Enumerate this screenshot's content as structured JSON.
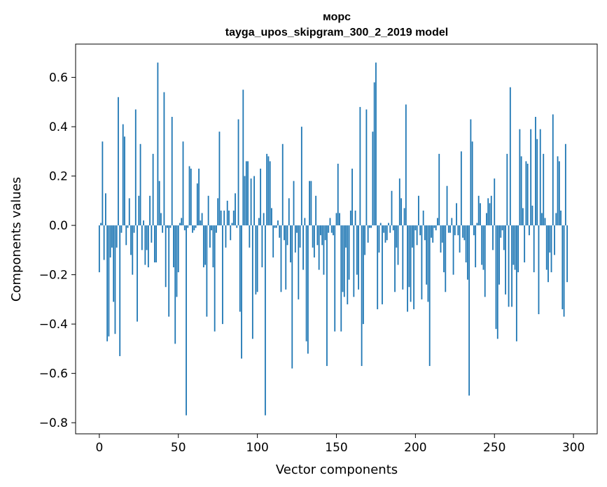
{
  "chart_data": {
    "type": "bar",
    "title": "морс",
    "subtitle": "tayga_upos_skipgram_300_2_2019 model",
    "xlabel": "Vector components",
    "ylabel": "Components values",
    "xlim": [
      -15,
      315
    ],
    "ylim": [
      -0.845,
      0.735
    ],
    "x_ticks": [
      0,
      50,
      100,
      150,
      200,
      250,
      300
    ],
    "y_ticks": [
      -0.8,
      -0.6,
      -0.4,
      -0.2,
      0.0,
      0.2,
      0.4,
      0.6
    ],
    "x_tick_labels": [
      "0",
      "50",
      "100",
      "150",
      "200",
      "250",
      "300"
    ],
    "y_tick_labels": [
      "−0.8",
      "−0.6",
      "−0.4",
      "−0.2",
      "0.0",
      "0.2",
      "0.4",
      "0.6"
    ],
    "bar_color": "#1f77b4",
    "grid": false,
    "values": [
      -0.19,
      0.01,
      0.34,
      -0.14,
      0.13,
      -0.47,
      -0.45,
      -0.13,
      -0.09,
      -0.31,
      -0.44,
      -0.09,
      0.52,
      -0.53,
      -0.03,
      0.41,
      0.36,
      -0.08,
      -0.01,
      0.11,
      -0.12,
      -0.2,
      -0.03,
      0.47,
      -0.39,
      0.12,
      0.33,
      -0.1,
      0.02,
      -0.16,
      -0.1,
      -0.17,
      0.12,
      -0.07,
      0.29,
      -0.15,
      -0.15,
      0.66,
      0.18,
      0.05,
      -0.03,
      0.54,
      -0.25,
      -0.01,
      -0.37,
      -0.01,
      0.44,
      -0.17,
      -0.48,
      -0.29,
      -0.19,
      0.01,
      0.03,
      0.34,
      -0.02,
      -0.77,
      -0.01,
      0.24,
      0.23,
      -0.03,
      -0.02,
      -0.01,
      0.17,
      0.23,
      0.02,
      0.05,
      -0.17,
      -0.16,
      -0.37,
      0.12,
      -0.09,
      -0.02,
      -0.17,
      -0.43,
      -0.03,
      0.11,
      0.38,
      0.06,
      -0.4,
      0.06,
      -0.09,
      0.1,
      0.06,
      -0.06,
      0.01,
      0.06,
      0.13,
      -0.01,
      0.43,
      -0.35,
      -0.54,
      0.55,
      0.2,
      0.26,
      0.26,
      -0.09,
      0.19,
      -0.46,
      0.2,
      -0.28,
      -0.27,
      0.03,
      0.23,
      -0.17,
      0.05,
      -0.77,
      0.29,
      0.28,
      0.26,
      0.07,
      -0.13,
      -0.01,
      -0.01,
      0.02,
      -0.05,
      -0.27,
      0.33,
      -0.06,
      -0.26,
      -0.08,
      0.11,
      -0.15,
      -0.58,
      0.18,
      -0.11,
      -0.03,
      -0.3,
      -0.09,
      0.4,
      -0.18,
      0.03,
      -0.47,
      -0.52,
      0.18,
      0.18,
      -0.09,
      -0.13,
      0.12,
      -0.08,
      -0.18,
      -0.04,
      -0.08,
      -0.2,
      -0.06,
      -0.57,
      -0.03,
      0.03,
      -0.03,
      -0.04,
      -0.43,
      0.05,
      0.25,
      0.05,
      -0.43,
      -0.27,
      -0.29,
      -0.09,
      -0.32,
      -0.22,
      0.06,
      0.23,
      -0.29,
      0.06,
      -0.2,
      -0.26,
      0.48,
      -0.57,
      -0.4,
      -0.12,
      0.47,
      -0.07,
      -0.01,
      -0.01,
      0.38,
      0.58,
      0.66,
      -0.34,
      -0.11,
      0.01,
      -0.32,
      -0.03,
      -0.07,
      -0.06,
      0.01,
      -0.03,
      0.14,
      -0.02,
      -0.27,
      -0.09,
      -0.16,
      0.19,
      0.11,
      -0.26,
      0.07,
      0.49,
      -0.35,
      -0.25,
      -0.31,
      -0.09,
      -0.34,
      -0.02,
      -0.08,
      0.12,
      -0.04,
      -0.3,
      0.06,
      -0.06,
      -0.24,
      -0.31,
      -0.57,
      -0.05,
      -0.07,
      -0.01,
      -0.02,
      0.03,
      0.29,
      -0.11,
      -0.07,
      -0.19,
      -0.27,
      0.16,
      -0.03,
      -0.03,
      0.03,
      -0.2,
      -0.04,
      0.09,
      -0.04,
      -0.11,
      0.3,
      -0.05,
      -0.06,
      -0.15,
      -0.22,
      -0.69,
      0.43,
      0.34,
      -0.04,
      -0.17,
      0.01,
      0.12,
      0.09,
      -0.16,
      -0.18,
      -0.29,
      0.05,
      0.11,
      0.09,
      0.12,
      -0.1,
      0.19,
      -0.42,
      -0.46,
      -0.24,
      -0.05,
      -0.02,
      -0.1,
      -0.28,
      0.29,
      -0.33,
      0.56,
      -0.33,
      -0.16,
      -0.18,
      -0.47,
      -0.19,
      0.39,
      0.28,
      0.07,
      -0.15,
      0.26,
      0.25,
      -0.04,
      0.39,
      0.08,
      -0.19,
      0.44,
      0.35,
      -0.36,
      0.39,
      0.05,
      0.29,
      0.03,
      -0.18,
      -0.23,
      -0.11,
      -0.19,
      0.45,
      -0.12,
      0.05,
      0.28,
      0.26,
      0.06,
      -0.34,
      -0.37,
      0.33,
      -0.23
    ]
  }
}
